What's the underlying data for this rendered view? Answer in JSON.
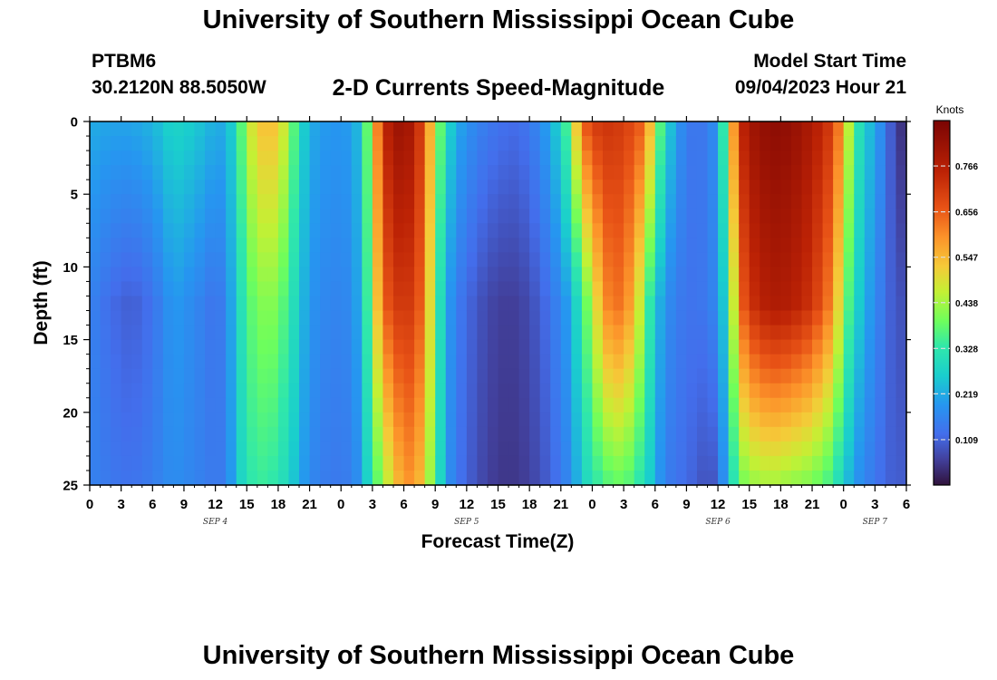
{
  "title": "University of Southern Mississippi Ocean Cube",
  "bottom_title": "University of Southern Mississippi Ocean Cube",
  "station": {
    "id": "PTBM6",
    "coords": "30.2120N  88.5050W"
  },
  "heading": "2-D Currents Speed-Magnitude",
  "model": {
    "label": "Model Start Time",
    "time": "09/04/2023 Hour 21"
  },
  "chart_data": {
    "type": "heatmap",
    "title": "2-D Currents Speed-Magnitude",
    "xlabel": "Forecast Time(Z)",
    "ylabel": "Depth (ft)",
    "xlim": [
      0,
      78
    ],
    "ylim": [
      0,
      25
    ],
    "x_ticks": [
      0,
      3,
      6,
      9,
      12,
      15,
      18,
      21,
      24,
      27,
      30,
      33,
      36,
      39,
      42,
      45,
      48,
      51,
      54,
      57,
      60,
      63,
      66,
      69,
      72,
      75,
      78
    ],
    "x_tick_labels": [
      "0",
      "3",
      "6",
      "9",
      "12",
      "15",
      "18",
      "21",
      "0",
      "3",
      "6",
      "9",
      "12",
      "15",
      "18",
      "21",
      "0",
      "3",
      "6",
      "9",
      "12",
      "15",
      "18",
      "21",
      "0",
      "3",
      "6"
    ],
    "y_ticks": [
      0,
      5,
      10,
      15,
      20,
      25
    ],
    "y_tick_labels": [
      "0",
      "5",
      "10",
      "15",
      "20",
      "25"
    ],
    "date_labels": [
      {
        "x": 12,
        "text": "SEP 4"
      },
      {
        "x": 36,
        "text": "SEP 5"
      },
      {
        "x": 60,
        "text": "SEP 6"
      },
      {
        "x": 75,
        "text": "SEP 7"
      }
    ],
    "colorbar": {
      "label": "Knots",
      "min": 0,
      "max": 0.875,
      "ticks": [
        0.109,
        0.219,
        0.328,
        0.438,
        0.547,
        0.656,
        0.766
      ],
      "tick_labels": [
        "0.109",
        "0.219",
        "0.328",
        "0.438",
        "0.547",
        "0.656",
        "0.766"
      ]
    },
    "depth_profiles": [
      0,
      12.5,
      25
    ],
    "time_series": [
      {
        "x": 0,
        "v": [
          0.22,
          0.16,
          0.16
        ]
      },
      {
        "x": 2,
        "v": [
          0.21,
          0.12,
          0.14
        ]
      },
      {
        "x": 4,
        "v": [
          0.21,
          0.1,
          0.13
        ]
      },
      {
        "x": 6,
        "v": [
          0.23,
          0.13,
          0.15
        ]
      },
      {
        "x": 8,
        "v": [
          0.28,
          0.2,
          0.18
        ]
      },
      {
        "x": 10,
        "v": [
          0.26,
          0.17,
          0.16
        ]
      },
      {
        "x": 12,
        "v": [
          0.22,
          0.13,
          0.14
        ]
      },
      {
        "x": 13,
        "v": [
          0.22,
          0.16,
          0.15
        ]
      },
      {
        "x": 14,
        "v": [
          0.3,
          0.26,
          0.24
        ]
      },
      {
        "x": 15,
        "v": [
          0.45,
          0.36,
          0.32
        ]
      },
      {
        "x": 16,
        "v": [
          0.52,
          0.4,
          0.34
        ]
      },
      {
        "x": 17,
        "v": [
          0.55,
          0.42,
          0.34
        ]
      },
      {
        "x": 18,
        "v": [
          0.52,
          0.4,
          0.32
        ]
      },
      {
        "x": 19,
        "v": [
          0.44,
          0.34,
          0.28
        ]
      },
      {
        "x": 20,
        "v": [
          0.3,
          0.26,
          0.22
        ]
      },
      {
        "x": 21,
        "v": [
          0.22,
          0.19,
          0.17
        ]
      },
      {
        "x": 23,
        "v": [
          0.19,
          0.16,
          0.14
        ]
      },
      {
        "x": 25,
        "v": [
          0.2,
          0.17,
          0.15
        ]
      },
      {
        "x": 26,
        "v": [
          0.26,
          0.24,
          0.2
        ]
      },
      {
        "x": 27,
        "v": [
          0.5,
          0.44,
          0.34
        ]
      },
      {
        "x": 28,
        "v": [
          0.73,
          0.64,
          0.42
        ]
      },
      {
        "x": 29,
        "v": [
          0.8,
          0.7,
          0.52
        ]
      },
      {
        "x": 30,
        "v": [
          0.82,
          0.72,
          0.58
        ]
      },
      {
        "x": 31,
        "v": [
          0.77,
          0.7,
          0.6
        ]
      },
      {
        "x": 32,
        "v": [
          0.66,
          0.62,
          0.5
        ]
      },
      {
        "x": 33,
        "v": [
          0.46,
          0.38,
          0.36
        ]
      },
      {
        "x": 34,
        "v": [
          0.3,
          0.22,
          0.2
        ]
      },
      {
        "x": 35,
        "v": [
          0.22,
          0.15,
          0.14
        ]
      },
      {
        "x": 37,
        "v": [
          0.16,
          0.09,
          0.08
        ]
      },
      {
        "x": 39,
        "v": [
          0.13,
          0.06,
          0.05
        ]
      },
      {
        "x": 41,
        "v": [
          0.12,
          0.06,
          0.05
        ]
      },
      {
        "x": 43,
        "v": [
          0.17,
          0.1,
          0.08
        ]
      },
      {
        "x": 45,
        "v": [
          0.28,
          0.17,
          0.14
        ]
      },
      {
        "x": 46,
        "v": [
          0.42,
          0.22,
          0.18
        ]
      },
      {
        "x": 47,
        "v": [
          0.64,
          0.34,
          0.26
        ]
      },
      {
        "x": 48,
        "v": [
          0.7,
          0.45,
          0.32
        ]
      },
      {
        "x": 49,
        "v": [
          0.72,
          0.58,
          0.35
        ]
      },
      {
        "x": 50,
        "v": [
          0.72,
          0.64,
          0.38
        ]
      },
      {
        "x": 51,
        "v": [
          0.7,
          0.62,
          0.38
        ]
      },
      {
        "x": 52,
        "v": [
          0.68,
          0.55,
          0.35
        ]
      },
      {
        "x": 53,
        "v": [
          0.64,
          0.4,
          0.3
        ]
      },
      {
        "x": 54,
        "v": [
          0.46,
          0.26,
          0.22
        ]
      },
      {
        "x": 55,
        "v": [
          0.28,
          0.18,
          0.15
        ]
      },
      {
        "x": 57,
        "v": [
          0.14,
          0.13,
          0.12
        ]
      },
      {
        "x": 59,
        "v": [
          0.14,
          0.14,
          0.08
        ]
      },
      {
        "x": 60,
        "v": [
          0.2,
          0.18,
          0.1
        ]
      },
      {
        "x": 61,
        "v": [
          0.46,
          0.32,
          0.25
        ]
      },
      {
        "x": 62,
        "v": [
          0.72,
          0.62,
          0.38
        ]
      },
      {
        "x": 63,
        "v": [
          0.8,
          0.72,
          0.42
        ]
      },
      {
        "x": 65,
        "v": [
          0.84,
          0.78,
          0.44
        ]
      },
      {
        "x": 67,
        "v": [
          0.83,
          0.77,
          0.42
        ]
      },
      {
        "x": 69,
        "v": [
          0.78,
          0.72,
          0.4
        ]
      },
      {
        "x": 71,
        "v": [
          0.7,
          0.6,
          0.34
        ]
      },
      {
        "x": 72,
        "v": [
          0.56,
          0.42,
          0.26
        ]
      },
      {
        "x": 73,
        "v": [
          0.36,
          0.3,
          0.2
        ]
      },
      {
        "x": 74,
        "v": [
          0.26,
          0.22,
          0.16
        ]
      },
      {
        "x": 75,
        "v": [
          0.22,
          0.18,
          0.14
        ]
      },
      {
        "x": 76,
        "v": [
          0.14,
          0.12,
          0.11
        ]
      },
      {
        "x": 77,
        "v": [
          0.06,
          0.09,
          0.1
        ]
      },
      {
        "x": 78,
        "v": [
          0.03,
          0.08,
          0.1
        ]
      }
    ]
  }
}
